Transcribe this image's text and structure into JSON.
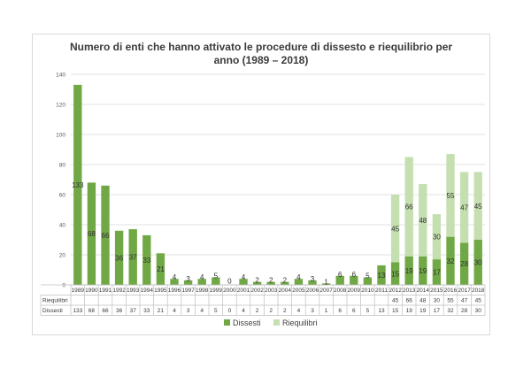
{
  "chart_data": {
    "type": "bar",
    "stacked": true,
    "title": "Numero di enti che hanno attivato le procedure di dissesto e riequilibrio per anno (1989 – 2018)",
    "title_lines": [
      "Numero di enti che hanno attivato le procedure di dissesto e riequilibrio per",
      "anno (1989 – 2018)"
    ],
    "categories": [
      "1989",
      "1990",
      "1991",
      "1992",
      "1993",
      "1994",
      "1995",
      "1996",
      "1997",
      "1998",
      "1999",
      "2000",
      "2001",
      "2002",
      "2003",
      "2004",
      "2005",
      "2006",
      "2007",
      "2008",
      "2009",
      "2010",
      "2011",
      "2012",
      "2013",
      "2014",
      "2015",
      "2016",
      "2017",
      "2018"
    ],
    "series": [
      {
        "name": "Dissesti",
        "color": "#70a845",
        "values": [
          133,
          68,
          66,
          36,
          37,
          33,
          21,
          4,
          3,
          4,
          5,
          0,
          4,
          2,
          2,
          2,
          4,
          3,
          1,
          6,
          6,
          5,
          13,
          15,
          19,
          19,
          17,
          32,
          28,
          30
        ]
      },
      {
        "name": "Riequilibri",
        "color": "#c5dfb0",
        "values": [
          null,
          null,
          null,
          null,
          null,
          null,
          null,
          null,
          null,
          null,
          null,
          null,
          null,
          null,
          null,
          null,
          null,
          null,
          null,
          null,
          null,
          null,
          null,
          45,
          66,
          48,
          30,
          55,
          47,
          45
        ]
      }
    ],
    "ylim": [
      0,
      140
    ],
    "yticks": [
      0,
      20,
      40,
      60,
      80,
      100,
      120,
      140
    ],
    "grid": true,
    "legend_position": "bottom",
    "data_table": true
  }
}
